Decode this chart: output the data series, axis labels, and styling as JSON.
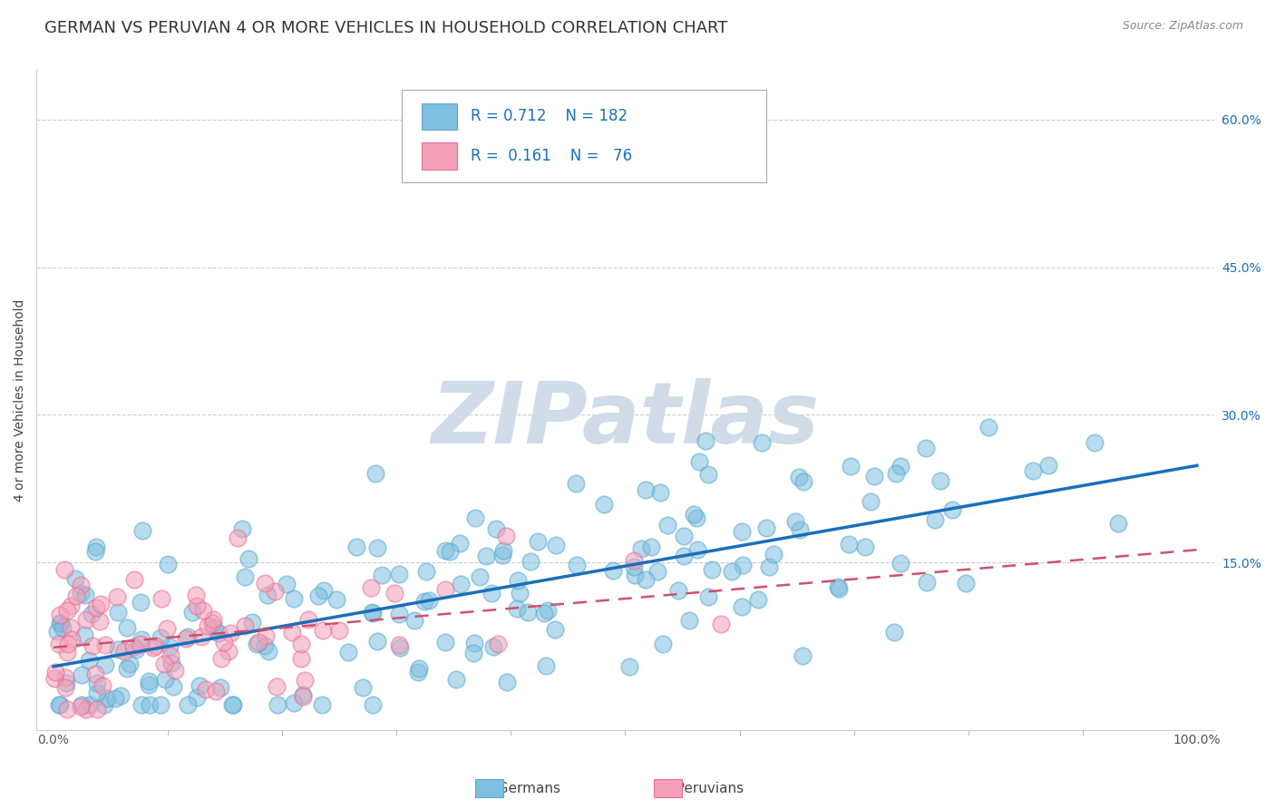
{
  "title": "GERMAN VS PERUVIAN 4 OR MORE VEHICLES IN HOUSEHOLD CORRELATION CHART",
  "source": "Source: ZipAtlas.com",
  "ylabel": "4 or more Vehicles in Household",
  "german_color": "#7fbfdf",
  "german_edge_color": "#5aaad0",
  "peruvian_color": "#f4a0b8",
  "peruvian_edge_color": "#e87090",
  "german_line_color": "#1a6fba",
  "peruvian_line_color": "#d05070",
  "watermark_text": "ZIPatlas",
  "watermark_color": "#d0dce8",
  "german_R": 0.712,
  "german_N": 182,
  "peruvian_R": 0.161,
  "peruvian_N": 76,
  "x_min": 0.0,
  "x_max": 1.0,
  "y_min": -0.02,
  "y_max": 0.65,
  "yticks": [
    0.15,
    0.3,
    0.45,
    0.6
  ],
  "ytick_labels": [
    "15.0%",
    "30.0%",
    "45.0%",
    "60.0%"
  ],
  "xticks": [
    0.0,
    1.0
  ],
  "xtick_labels": [
    "0.0%",
    "100.0%"
  ],
  "title_fontsize": 13,
  "axis_label_fontsize": 10,
  "tick_fontsize": 10,
  "legend_fontsize": 12,
  "marker_size": 180,
  "german_seed": 42,
  "peruvian_seed": 123
}
